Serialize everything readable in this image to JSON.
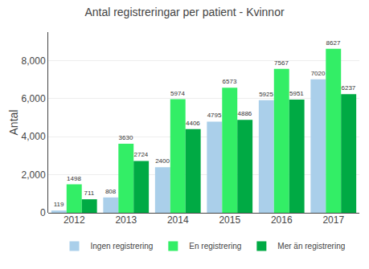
{
  "chart_data": {
    "type": "bar",
    "title": "Antal registreringar per patient - Kvinnor",
    "ylabel": "Antal",
    "categories": [
      "2012",
      "2013",
      "2014",
      "2015",
      "2016",
      "2017"
    ],
    "series": [
      {
        "name": "Ingen registrering",
        "color": "#AACFEA",
        "values": [
          119,
          808,
          2400,
          4795,
          5925,
          7020
        ]
      },
      {
        "name": "En registrering",
        "color": "#33EE66",
        "values": [
          1498,
          3630,
          5974,
          6573,
          7567,
          8627
        ]
      },
      {
        "name": "Mer än registrering",
        "color": "#00AA44",
        "values": [
          711,
          2724,
          4406,
          4886,
          5951,
          6237
        ]
      }
    ],
    "ylim": [
      0,
      9500
    ],
    "yticks": [
      0,
      {
        "value": 2000,
        "label": "2,000"
      },
      {
        "value": 4000,
        "label": "4,000"
      },
      {
        "value": 6000,
        "label": "6,000"
      },
      {
        "value": 8000,
        "label": "8,000"
      }
    ],
    "grid": true,
    "legend": "bottom",
    "data_labels": true
  }
}
